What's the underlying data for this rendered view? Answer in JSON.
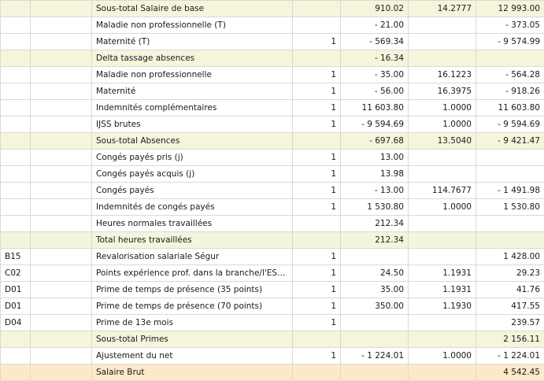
{
  "rows": [
    {
      "type": "subtotal",
      "code": "",
      "label": "Sous-total Salaire de base",
      "qty": "",
      "base": "910.02",
      "rate": "14.2777",
      "amount": "12 993.00"
    },
    {
      "type": "normal",
      "code": "",
      "label": "Maladie non professionnelle (T)",
      "qty": "",
      "base": "- 21.00",
      "rate": "",
      "amount": "- 373.05"
    },
    {
      "type": "normal",
      "code": "",
      "label": "Maternité (T)",
      "qty": "1",
      "base": "- 569.34",
      "rate": "",
      "amount": "- 9 574.99"
    },
    {
      "type": "subtotal-indent",
      "code": "",
      "label": "Delta tassage absences",
      "qty": "",
      "base": "- 16.34",
      "rate": "",
      "amount": ""
    },
    {
      "type": "normal",
      "code": "",
      "label": "Maladie non professionnelle",
      "qty": "1",
      "base": "- 35.00",
      "rate": "16.1223",
      "amount": "- 564.28"
    },
    {
      "type": "normal",
      "code": "",
      "label": "Maternité",
      "qty": "1",
      "base": "- 56.00",
      "rate": "16.3975",
      "amount": "- 918.26"
    },
    {
      "type": "normal",
      "code": "",
      "label": "Indemnités complémentaires",
      "qty": "1",
      "base": "11 603.80",
      "rate": "1.0000",
      "amount": "11 603.80"
    },
    {
      "type": "normal",
      "code": "",
      "label": "IJSS brutes",
      "qty": "1",
      "base": "- 9 594.69",
      "rate": "1.0000",
      "amount": "- 9 594.69"
    },
    {
      "type": "subtotal",
      "code": "",
      "label": "Sous-total Absences",
      "qty": "",
      "base": "- 697.68",
      "rate": "13.5040",
      "amount": "- 9 421.47"
    },
    {
      "type": "normal",
      "code": "",
      "label": "Congés payés pris (j)",
      "qty": "1",
      "base": "13.00",
      "rate": "",
      "amount": ""
    },
    {
      "type": "normal",
      "code": "",
      "label": "Congés payés acquis (j)",
      "qty": "1",
      "base": "13.98",
      "rate": "",
      "amount": ""
    },
    {
      "type": "normal",
      "code": "",
      "label": "Congés payés",
      "qty": "1",
      "base": "- 13.00",
      "rate": "114.7677",
      "amount": "- 1 491.98"
    },
    {
      "type": "normal",
      "code": "",
      "label": "Indemnités de congés payés",
      "qty": "1",
      "base": "1 530.80",
      "rate": "1.0000",
      "amount": "1 530.80"
    },
    {
      "type": "normal",
      "code": "",
      "label": "Heures normales travaillées",
      "qty": "",
      "base": "212.34",
      "rate": "",
      "amount": ""
    },
    {
      "type": "subtotal",
      "code": "",
      "label": "Total heures travaillées",
      "qty": "",
      "base": "212.34",
      "rate": "",
      "amount": ""
    },
    {
      "type": "normal",
      "code": "B15",
      "label": "Revalorisation salariale Ségur",
      "qty": "1",
      "base": "",
      "rate": "",
      "amount": "1 428.00"
    },
    {
      "type": "normal",
      "code": "C02",
      "label": "Points expérience prof. dans la branche/l'ESS (...",
      "qty": "1",
      "base": "24.50",
      "rate": "1.1931",
      "amount": "29.23"
    },
    {
      "type": "normal",
      "code": "D01",
      "label": "Prime de temps de présence (35 points)",
      "qty": "1",
      "base": "35.00",
      "rate": "1.1931",
      "amount": "41.76"
    },
    {
      "type": "normal",
      "code": "D01",
      "label": "Prime de temps de présence (70 points)",
      "qty": "1",
      "base": "350.00",
      "rate": "1.1930",
      "amount": "417.55"
    },
    {
      "type": "normal",
      "code": "D04",
      "label": "Prime de 13e mois",
      "qty": "1",
      "base": "",
      "rate": "",
      "amount": "239.57"
    },
    {
      "type": "subtotal",
      "code": "",
      "label": "Sous-total Primes",
      "qty": "",
      "base": "",
      "rate": "",
      "amount": "2 156.11"
    },
    {
      "type": "normal",
      "code": "",
      "label": "Ajustement du net",
      "qty": "1",
      "base": "- 1 224.01",
      "rate": "1.0000",
      "amount": "- 1 224.01"
    },
    {
      "type": "total",
      "code": "",
      "label": "Salaire Brut",
      "qty": "",
      "base": "",
      "rate": "",
      "amount": "4 542.45"
    }
  ]
}
